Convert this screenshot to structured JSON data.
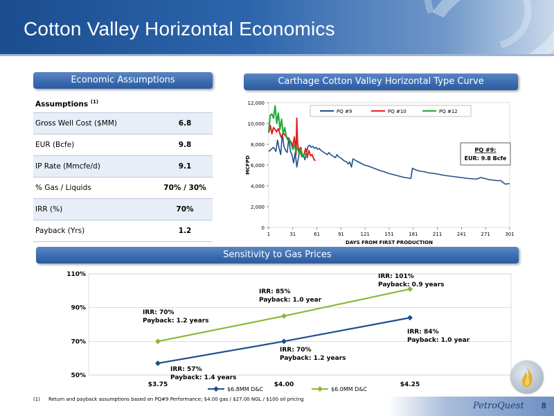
{
  "header": {
    "title": "Cotton Valley Horizontal Economics"
  },
  "sections": {
    "assumptions": "Economic Assumptions",
    "type_curve": "Carthage Cotton Valley Horizontal Type Curve",
    "sensitivity": "Sensitivity to Gas Prices"
  },
  "assumptions": {
    "header_label": "Assumptions",
    "header_sup": "(1)",
    "rows": [
      {
        "label": "Gross Well Cost ($MM)",
        "value": "6.8"
      },
      {
        "label": "EUR (Bcfe)",
        "value": "9.8"
      },
      {
        "label": "IP Rate (Mmcfe/d)",
        "value": "9.1"
      },
      {
        "label": "% Gas / Liquids",
        "value": "70% / 30%"
      },
      {
        "label": "IRR (%)",
        "value": "70%"
      },
      {
        "label": "Payback (Yrs)",
        "value": "1.2"
      }
    ]
  },
  "chart_data": [
    {
      "type": "line",
      "xlabel": "DAYS FROM FIRST PRODUCTION",
      "ylabel": "MCFPD",
      "xlim": [
        1,
        301
      ],
      "ylim": [
        0,
        12000
      ],
      "x_ticks": [
        "1",
        "31",
        "61",
        "91",
        "121",
        "151",
        "181",
        "211",
        "241",
        "271",
        "301"
      ],
      "y_ticks": [
        "0",
        "2,000",
        "4,000",
        "6,000",
        "8,000",
        "10,000",
        "12,000"
      ],
      "legend_position": "top",
      "annotation": {
        "line1": "PQ #9:",
        "line2": "EUR: 9.8 Bcfe"
      },
      "series": [
        {
          "name": "PQ #9",
          "color": "#1f4e8c",
          "x": [
            1,
            4,
            7,
            10,
            12,
            14,
            16,
            18,
            20,
            22,
            24,
            26,
            28,
            30,
            32,
            34,
            36,
            38,
            40,
            42,
            44,
            46,
            48,
            50,
            52,
            54,
            56,
            58,
            60,
            62,
            64,
            66,
            68,
            70,
            72,
            74,
            76,
            78,
            80,
            82,
            84,
            86,
            88,
            90,
            92,
            95,
            98,
            100,
            102,
            104,
            106,
            110,
            115,
            120,
            125,
            130,
            135,
            140,
            145,
            150,
            155,
            160,
            165,
            170,
            175,
            178,
            180,
            182,
            185,
            190,
            195,
            200,
            210,
            220,
            230,
            240,
            250,
            260,
            265,
            270,
            275,
            280,
            285,
            290,
            293,
            296,
            298,
            301
          ],
          "y": [
            7300,
            7500,
            7700,
            7300,
            8400,
            7600,
            7000,
            9000,
            7800,
            7400,
            7200,
            8600,
            7300,
            7000,
            6200,
            7200,
            5800,
            6700,
            7600,
            6800,
            7000,
            6500,
            7200,
            7800,
            7900,
            7700,
            7800,
            7600,
            7700,
            7500,
            7600,
            7400,
            7300,
            7200,
            7100,
            7000,
            7200,
            7000,
            6900,
            6800,
            6700,
            7000,
            6800,
            6700,
            6600,
            6400,
            6300,
            6100,
            6300,
            5800,
            6600,
            6400,
            6200,
            6000,
            5900,
            5750,
            5600,
            5450,
            5350,
            5200,
            5100,
            5000,
            4900,
            4800,
            4750,
            4700,
            5700,
            5600,
            5500,
            5400,
            5350,
            5250,
            5150,
            5000,
            4900,
            4800,
            4700,
            4650,
            4800,
            4700,
            4600,
            4550,
            4500,
            4500,
            4300,
            4150,
            4200,
            4200
          ]
        },
        {
          "name": "PQ #10",
          "color": "#e02020",
          "x": [
            1,
            3,
            5,
            7,
            9,
            11,
            13,
            15,
            17,
            19,
            21,
            23,
            25,
            27,
            29,
            31,
            33,
            35,
            36,
            37,
            39,
            41,
            43,
            45,
            47,
            49,
            51,
            53,
            55,
            57,
            59
          ],
          "y": [
            9100,
            9800,
            9000,
            9600,
            9400,
            9200,
            9500,
            9000,
            8600,
            9100,
            8900,
            8700,
            8600,
            8300,
            8200,
            7800,
            8700,
            7000,
            10500,
            8000,
            7300,
            7700,
            6800,
            7000,
            7600,
            6700,
            7400,
            6900,
            7000,
            6600,
            6400
          ]
        },
        {
          "name": "PQ #12",
          "color": "#21a838",
          "x": [
            1,
            3,
            5,
            7,
            9,
            11,
            13,
            15,
            17,
            19,
            21,
            23,
            25,
            27,
            29,
            31,
            33,
            35,
            37,
            39,
            41,
            43,
            45,
            47,
            49
          ],
          "y": [
            9200,
            10800,
            10900,
            10500,
            11700,
            10000,
            11000,
            9400,
            10400,
            9000,
            9600,
            8700,
            8400,
            8500,
            8000,
            7500,
            7900,
            7300,
            7700,
            7000,
            7500,
            6800,
            7100,
            7000,
            6800
          ]
        }
      ]
    },
    {
      "type": "line",
      "categories": [
        "$3.75",
        "$4.00",
        "$4.25"
      ],
      "y_ticks": [
        "50%",
        "70%",
        "90%",
        "110%"
      ],
      "ylim": [
        50,
        110
      ],
      "legend_position": "bottom",
      "series": [
        {
          "name": "$6.8MM D&C",
          "color": "#1f4e8c",
          "values": [
            57,
            70,
            84
          ],
          "labels": [
            {
              "irr": "IRR: 57%",
              "payback": "Payback: 1.4 years"
            },
            {
              "irr": "IRR: 70%",
              "payback": "Payback:  1.2 years"
            },
            {
              "irr": "IRR: 84%",
              "payback": "Payback: 1.0 year"
            }
          ]
        },
        {
          "name": "$6.0MM D&C",
          "color": "#8ab83c",
          "values": [
            70,
            85,
            101
          ],
          "labels": [
            {
              "irr": "IRR: 70%",
              "payback": "Payback: 1.2 years"
            },
            {
              "irr": "IRR: 85%",
              "payback": "Payback: 1.0 year"
            },
            {
              "irr": "IRR: 101%",
              "payback": "Payback:  0.9 years"
            }
          ]
        }
      ]
    }
  ],
  "footnote": {
    "num": "(1)",
    "text": "Return and payback assumptions based on PQ#9 Performance; $4.00 gas / $27.00 NGL / $100 oil pricing"
  },
  "footer": {
    "logo_text": "PetroQuest",
    "page_number": "8"
  }
}
